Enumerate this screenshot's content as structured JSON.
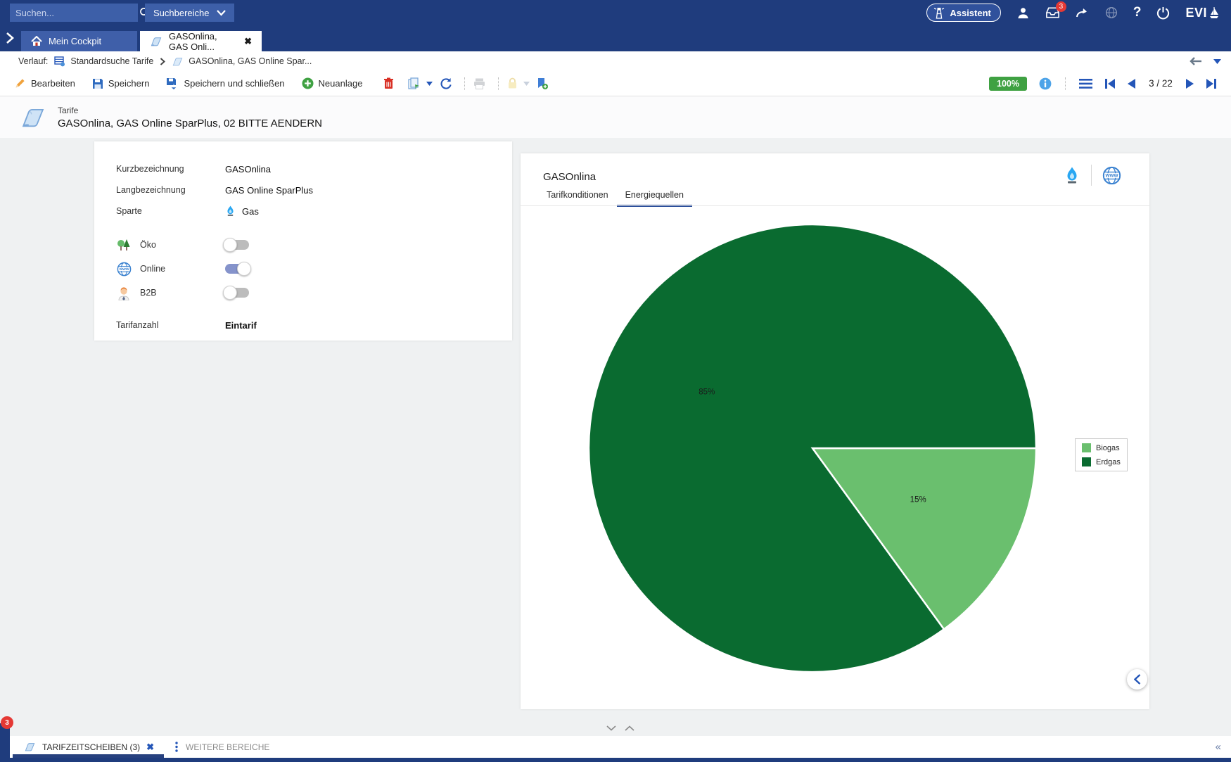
{
  "topbar": {
    "search_placeholder": "Suchen...",
    "scope_button": "Suchbereiche",
    "assistant_button": "Assistent",
    "inbox_badge": "3",
    "brand": "EVI"
  },
  "tab_strip": {
    "tabs": [
      {
        "label": "Mein Cockpit"
      },
      {
        "label": "GASOnlina, GAS Onli..."
      }
    ]
  },
  "breadcrumb": {
    "label": "Verlauf:",
    "items": [
      "Standardsuche Tarife",
      "GASOnlina, GAS Online Spar..."
    ]
  },
  "toolbar": {
    "edit": "Bearbeiten",
    "save": "Speichern",
    "save_and_close": "Speichern und schließen",
    "create_new": "Neuanlage",
    "zoom_badge": "100%",
    "page_indicator": "3 / 22"
  },
  "page_header": {
    "category": "Tarife",
    "title": "GASOnlina, GAS Online SparPlus, 02 BITTE AENDERN"
  },
  "details_form": {
    "fields": [
      {
        "label": "Kurzbezeichnung",
        "value": "GASOnlina"
      },
      {
        "label": "Langbezeichnung",
        "value": "GAS Online SparPlus"
      },
      {
        "label": "Sparte",
        "value": "Gas"
      }
    ],
    "toggles": [
      {
        "label": "Öko",
        "on": false
      },
      {
        "label": "Online",
        "on": true
      },
      {
        "label": "B2B",
        "on": false
      }
    ],
    "footer_field": {
      "label": "Tarifanzahl",
      "value": "Eintarif"
    }
  },
  "detail_panel": {
    "title": "GASOnlina",
    "tabs": [
      {
        "label": "Tarifkonditionen"
      },
      {
        "label": "Energiequellen"
      }
    ],
    "active_tab": "Energiequellen"
  },
  "chart_data": {
    "type": "pie",
    "title": "Energiequellen",
    "slices": [
      {
        "name": "Biogas",
        "value": 15,
        "label": "15%",
        "color": "#6abf6e"
      },
      {
        "name": "Erdgas",
        "value": 85,
        "label": "85%",
        "color": "#0a6b30"
      }
    ],
    "start_angle_deg": 0,
    "direction": "clockwise",
    "legend_position": "right",
    "legend": [
      "Biogas",
      "Erdgas"
    ]
  },
  "bottom_bar": {
    "badge": "3",
    "active_tab": "TARIFZEITSCHEIBEN (3)",
    "more_label": "WEITERE BEREICHE"
  }
}
